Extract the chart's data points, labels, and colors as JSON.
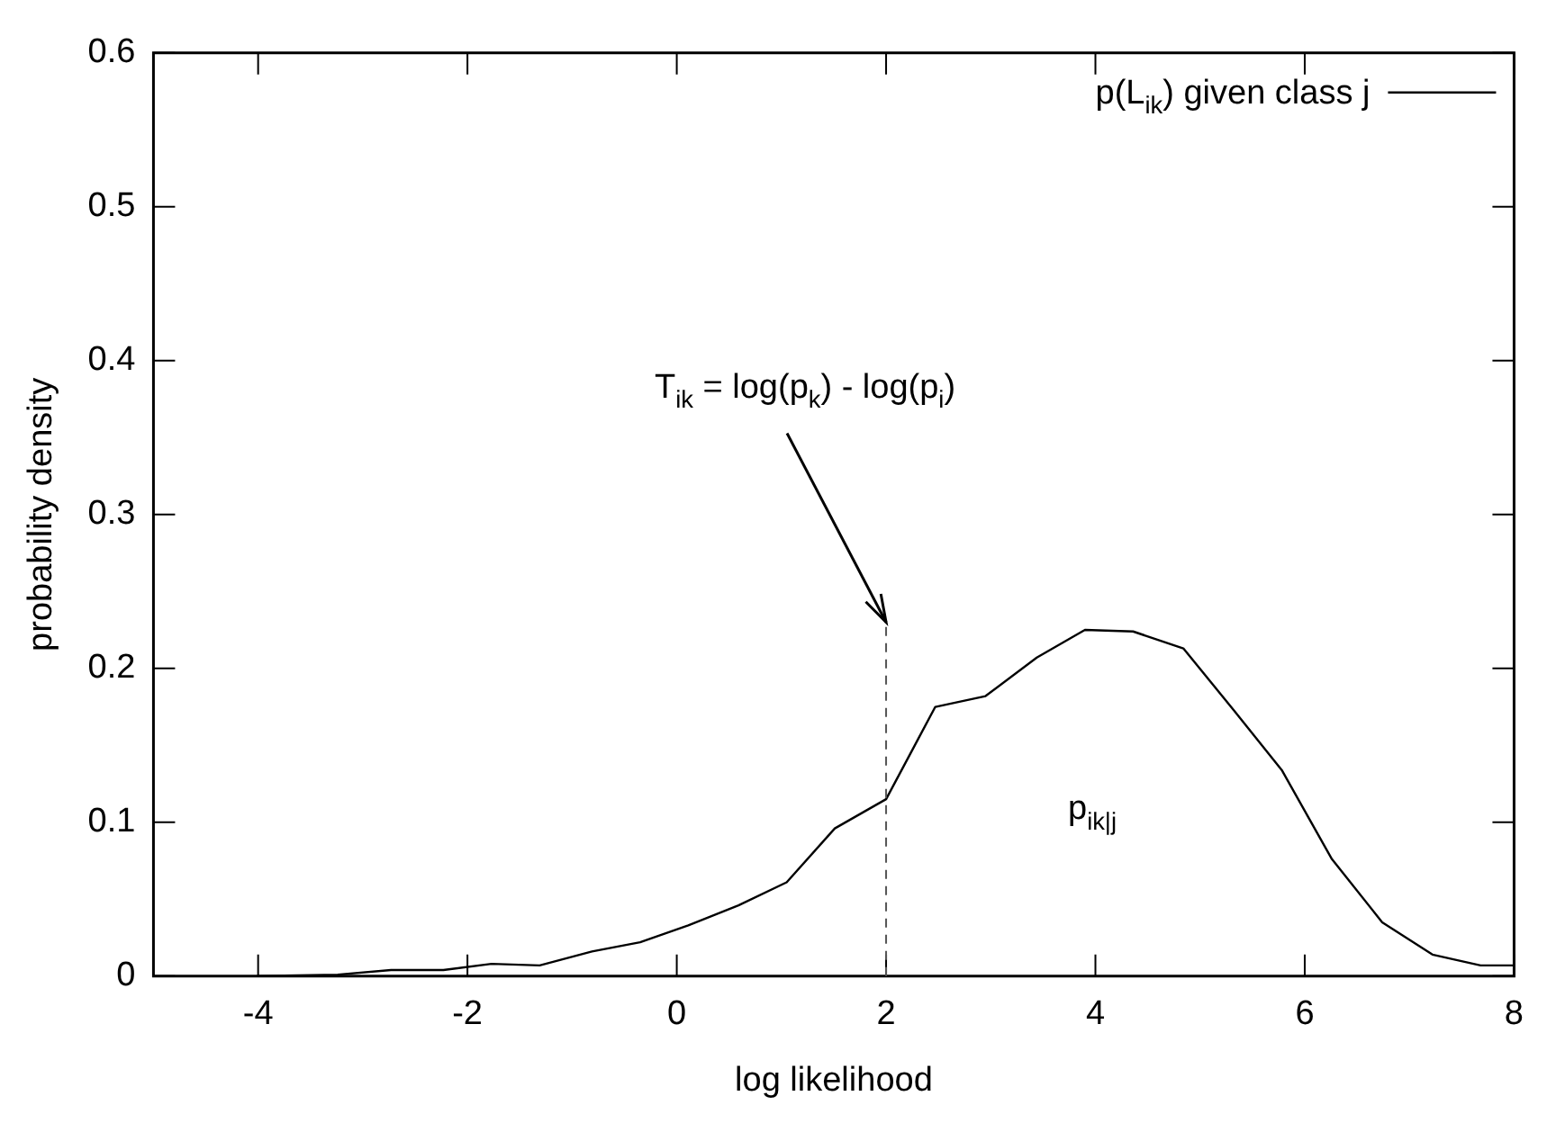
{
  "chart_data": {
    "type": "line",
    "xlabel": "log likelihood",
    "ylabel": "probability density",
    "x": [
      -4.01,
      -3.24,
      -2.73,
      -2.23,
      -1.77,
      -1.31,
      -0.81,
      -0.35,
      0.11,
      0.59,
      1.05,
      1.51,
      2.0,
      2.47,
      2.95,
      3.44,
      3.9,
      4.36,
      4.84,
      5.32,
      5.78,
      6.26,
      6.74,
      7.22,
      7.68,
      8.0
    ],
    "series": [
      {
        "name": "p(L$_{ik}$) given class j",
        "color": "#000000",
        "values": [
          0,
          0.001,
          0.004,
          0.004,
          0.008,
          0.007,
          0.016,
          0.022,
          0.033,
          0.046,
          0.061,
          0.096,
          0.115,
          0.175,
          0.182,
          0.207,
          0.225,
          0.224,
          0.213,
          0.173,
          0.134,
          0.076,
          0.035,
          0.014,
          0.007,
          0.007
        ]
      }
    ],
    "xlim": [
      -5,
      8
    ],
    "xticks": [
      -4,
      -2,
      0,
      2,
      4,
      6,
      8
    ],
    "ylim": [
      0,
      0.6
    ],
    "yticks": [
      0,
      0.1,
      0.2,
      0.3,
      0.4,
      0.5,
      0.6
    ],
    "grid": false,
    "legend": "top right",
    "marker": "none",
    "line_style": "solid",
    "ref_lines": [
      {
        "axis": "x",
        "value": 2,
        "color": "#555555",
        "line_style": "dashed"
      }
    ],
    "annotations": [
      {
        "text": "T$_{ik}$ = log(p$_{k}$) - log(p$_{i}$)",
        "x": 2,
        "y": 0.23
      },
      "p$_{ik|j}$"
    ]
  }
}
